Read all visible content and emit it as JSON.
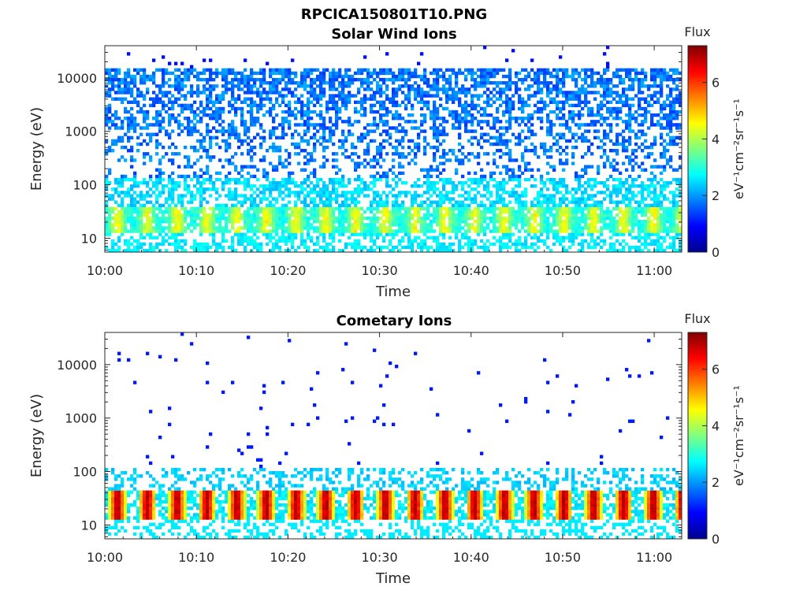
{
  "figure": {
    "title": "RPCICA150801T10.PNG"
  },
  "chart_data": [
    {
      "type": "heatmap",
      "title": "Solar Wind Ions",
      "xlabel": "Time",
      "ylabel": "Energy (eV)",
      "x_ticks": [
        "10:00",
        "10:10",
        "10:20",
        "10:30",
        "10:40",
        "10:50",
        "11:00"
      ],
      "x_tick_minutes": [
        0,
        10,
        20,
        30,
        40,
        50,
        60
      ],
      "xlim_minutes": [
        0,
        63
      ],
      "y_scale": "log",
      "y_ticks": [
        "10",
        "100",
        "1000",
        "10000"
      ],
      "y_tick_values": [
        10,
        100,
        1000,
        10000
      ],
      "ylim": [
        5.5,
        40000
      ],
      "colorbar": {
        "label": "Flux",
        "unit_label": "eV⁻¹cm⁻²sr⁻¹s⁻¹",
        "ticks": [
          "0",
          "2",
          "4",
          "6"
        ],
        "range": [
          0,
          7.3
        ],
        "colormap": "jet"
      },
      "pattern": {
        "bright_band_eV": [
          12,
          40
        ],
        "bright_level": 4.6,
        "scatter_level": 1.3,
        "scatter_upper_eV": 15000,
        "bright_period_min": 3.25
      }
    },
    {
      "type": "heatmap",
      "title": "Cometary Ions",
      "xlabel": "Time",
      "ylabel": "Energy (eV)",
      "x_ticks": [
        "10:00",
        "10:10",
        "10:20",
        "10:30",
        "10:40",
        "10:50",
        "11:00"
      ],
      "x_tick_minutes": [
        0,
        10,
        20,
        30,
        40,
        50,
        60
      ],
      "xlim_minutes": [
        0,
        63
      ],
      "y_scale": "log",
      "y_ticks": [
        "10",
        "100",
        "1000",
        "10000"
      ],
      "y_tick_values": [
        10,
        100,
        1000,
        10000
      ],
      "ylim": [
        5.5,
        40000
      ],
      "colorbar": {
        "label": "Flux",
        "unit_label": "eV⁻¹cm⁻²sr⁻¹s⁻¹",
        "ticks": [
          "0",
          "2",
          "4",
          "6"
        ],
        "range": [
          0,
          7.3
        ],
        "colormap": "jet"
      },
      "pattern": {
        "bright_band_eV": [
          12,
          42
        ],
        "bright_level": 6.3,
        "background_level": 2.2,
        "background_upper_eV": 110,
        "bright_period_min": 3.25
      }
    }
  ]
}
